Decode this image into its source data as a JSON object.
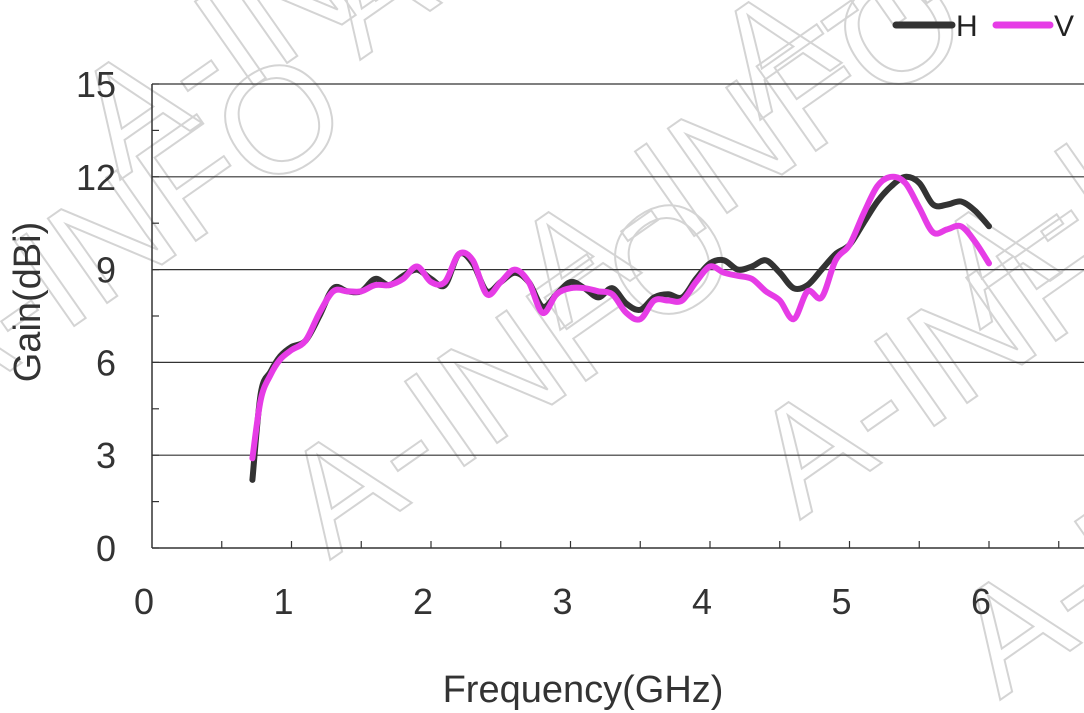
{
  "chart_data": {
    "type": "line",
    "xlabel": "Frequency(GHz)",
    "ylabel": "Gain(dBi)",
    "xlim": [
      0,
      6.5
    ],
    "ylim": [
      0,
      15
    ],
    "xticks": [
      "0",
      "1",
      "2",
      "3",
      "4",
      "5",
      "6"
    ],
    "yticks": [
      "0",
      "3",
      "6",
      "9",
      "12",
      "15"
    ],
    "grid": "horizontal",
    "legend": "top-right",
    "watermark": "A-INFO",
    "series": [
      {
        "name": "H",
        "color": "#333333",
        "x": [
          0.72,
          0.78,
          0.85,
          0.92,
          1.0,
          1.1,
          1.2,
          1.3,
          1.4,
          1.5,
          1.6,
          1.7,
          1.8,
          1.9,
          2.0,
          2.1,
          2.2,
          2.3,
          2.4,
          2.5,
          2.6,
          2.7,
          2.8,
          2.9,
          3.0,
          3.1,
          3.2,
          3.3,
          3.4,
          3.5,
          3.6,
          3.7,
          3.8,
          3.9,
          4.0,
          4.1,
          4.2,
          4.3,
          4.4,
          4.5,
          4.6,
          4.7,
          4.8,
          4.9,
          5.0,
          5.1,
          5.2,
          5.3,
          5.4,
          5.5,
          5.6,
          5.7,
          5.8,
          5.9,
          6.0
        ],
        "y": [
          2.2,
          5.0,
          5.7,
          6.2,
          6.5,
          6.7,
          7.5,
          8.4,
          8.3,
          8.3,
          8.7,
          8.5,
          8.8,
          9.0,
          8.7,
          8.5,
          9.5,
          9.2,
          8.3,
          8.6,
          8.9,
          8.6,
          7.8,
          8.2,
          8.6,
          8.4,
          8.1,
          8.4,
          7.9,
          7.7,
          8.1,
          8.2,
          8.1,
          8.7,
          9.2,
          9.3,
          9.0,
          9.1,
          9.3,
          8.9,
          8.4,
          8.5,
          9.0,
          9.5,
          9.8,
          10.5,
          11.2,
          11.7,
          12.0,
          11.8,
          11.1,
          11.1,
          11.2,
          10.9,
          10.4
        ]
      },
      {
        "name": "V",
        "color": "#e63ce6",
        "x": [
          0.72,
          0.78,
          0.85,
          0.92,
          1.0,
          1.1,
          1.2,
          1.3,
          1.4,
          1.5,
          1.6,
          1.7,
          1.8,
          1.9,
          2.0,
          2.1,
          2.2,
          2.3,
          2.4,
          2.5,
          2.6,
          2.7,
          2.8,
          2.9,
          3.0,
          3.1,
          3.2,
          3.3,
          3.4,
          3.5,
          3.6,
          3.7,
          3.8,
          3.9,
          4.0,
          4.1,
          4.2,
          4.3,
          4.4,
          4.5,
          4.6,
          4.7,
          4.8,
          4.9,
          5.0,
          5.1,
          5.2,
          5.3,
          5.4,
          5.5,
          5.6,
          5.7,
          5.8,
          5.9,
          6.0
        ],
        "y": [
          2.9,
          4.8,
          5.6,
          6.1,
          6.4,
          6.7,
          7.6,
          8.3,
          8.3,
          8.3,
          8.5,
          8.5,
          8.7,
          9.1,
          8.6,
          8.6,
          9.5,
          9.3,
          8.2,
          8.6,
          9.0,
          8.6,
          7.6,
          8.2,
          8.4,
          8.4,
          8.3,
          8.2,
          7.6,
          7.4,
          8.0,
          8.0,
          8.0,
          8.6,
          9.1,
          8.9,
          8.8,
          8.7,
          8.3,
          8.0,
          7.4,
          8.3,
          8.1,
          9.3,
          9.8,
          10.8,
          11.7,
          12.0,
          11.8,
          11.0,
          10.2,
          10.3,
          10.4,
          9.9,
          9.2
        ]
      }
    ]
  }
}
